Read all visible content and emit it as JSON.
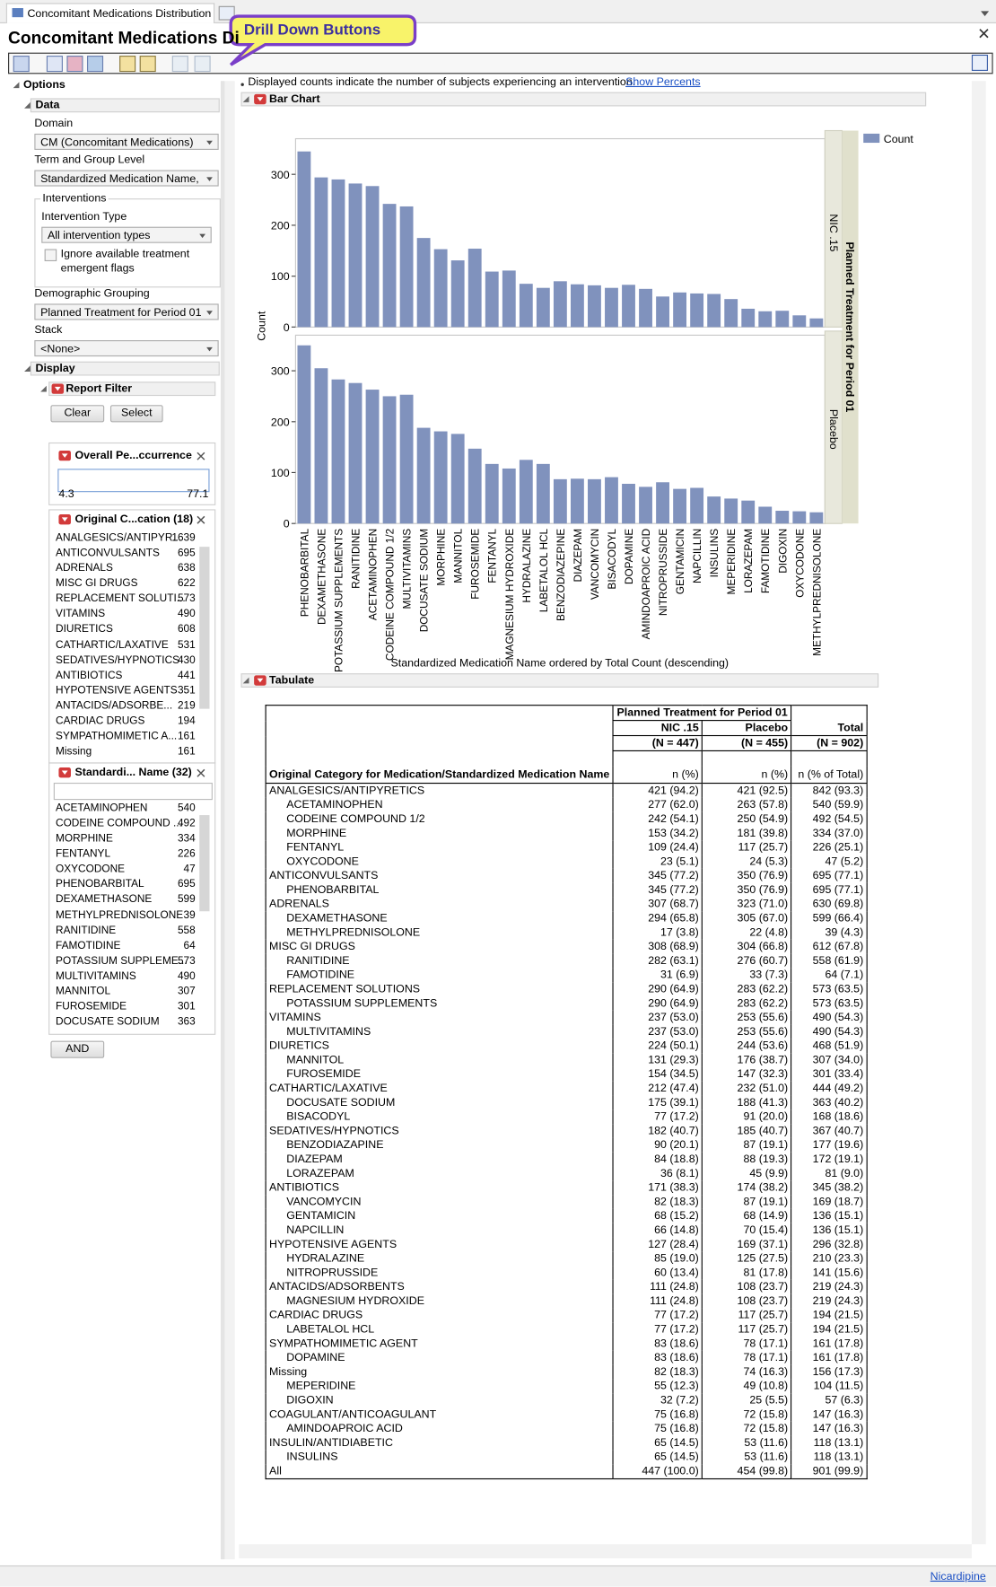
{
  "tab": {
    "title": "Concomitant Medications Distribution"
  },
  "header": {
    "title": "Concomitant Medications Di",
    "callout": "Drill Down Buttons"
  },
  "options": {
    "title": "Options",
    "data_section": "Data",
    "domain_label": "Domain",
    "domain_value": "CM (Concomitant Medications)",
    "term_label": "Term and Group Level",
    "term_value": "Standardized Medication Name, c",
    "interventions_label": "Interventions",
    "intervention_type_label": "Intervention Type",
    "intervention_type_value": "All intervention types",
    "ignore_checkbox_line1": "Ignore available treatment",
    "ignore_checkbox_line2": "emergent flags",
    "demographic_label": "Demographic Grouping",
    "demographic_value": "Planned Treatment for Period 01",
    "stack_label": "Stack",
    "stack_value": "<None>",
    "display_section": "Display",
    "report_filter": "Report Filter",
    "clear": "Clear",
    "select": "Select",
    "and_button": "AND"
  },
  "occurrence_filter": {
    "title": "Overall Pe...ccurrence",
    "range": [
      4.3,
      77.1
    ]
  },
  "category_filter": {
    "title": "Original C...cation (18)",
    "items": [
      {
        "name": "ANALGESICS/ANTIPYR...",
        "count": 1639
      },
      {
        "name": "ANTICONVULSANTS",
        "count": 695
      },
      {
        "name": "ADRENALS",
        "count": 638
      },
      {
        "name": "MISC GI DRUGS",
        "count": 622
      },
      {
        "name": "REPLACEMENT SOLUTI...",
        "count": 573
      },
      {
        "name": "VITAMINS",
        "count": 490
      },
      {
        "name": "DIURETICS",
        "count": 608
      },
      {
        "name": "CATHARTIC/LAXATIVE",
        "count": 531
      },
      {
        "name": "SEDATIVES/HYPNOTICS",
        "count": 430
      },
      {
        "name": "ANTIBIOTICS",
        "count": 441
      },
      {
        "name": "HYPOTENSIVE AGENTS",
        "count": 351
      },
      {
        "name": "ANTACIDS/ADSORBE...",
        "count": 219
      },
      {
        "name": "CARDIAC DRUGS",
        "count": 194
      },
      {
        "name": "SYMPATHOMIMETIC A...",
        "count": 161
      },
      {
        "name": "Missing",
        "count": 161
      }
    ]
  },
  "name_filter": {
    "title": "Standardi... Name (32)",
    "items": [
      {
        "name": "ACETAMINOPHEN",
        "count": 540
      },
      {
        "name": "CODEINE COMPOUND ...",
        "count": 492
      },
      {
        "name": "MORPHINE",
        "count": 334
      },
      {
        "name": "FENTANYL",
        "count": 226
      },
      {
        "name": "OXYCODONE",
        "count": 47
      },
      {
        "name": "PHENOBARBITAL",
        "count": 695
      },
      {
        "name": "DEXAMETHASONE",
        "count": 599
      },
      {
        "name": "METHYLPREDNISOLONE",
        "count": 39
      },
      {
        "name": "RANITIDINE",
        "count": 558
      },
      {
        "name": "FAMOTIDINE",
        "count": 64
      },
      {
        "name": "POTASSIUM SUPPLEME...",
        "count": 573
      },
      {
        "name": "MULTIVITAMINS",
        "count": 490
      },
      {
        "name": "MANNITOL",
        "count": 307
      },
      {
        "name": "FUROSEMIDE",
        "count": 301
      },
      {
        "name": "DOCUSATE SODIUM",
        "count": 363
      }
    ]
  },
  "note": {
    "text": "Displayed counts indicate the number of subjects experiencing an intervention.",
    "link": "Show Percents"
  },
  "chart_data": {
    "type": "bar",
    "section_title": "Bar Chart",
    "x_label": "Standardized Medication Name ordered by Total Count (descending)",
    "y_label": "Count",
    "group_label": "Planned Treatment for Period 01",
    "legend_title": "Count",
    "legend": "right",
    "color": "#8092bd",
    "categories": [
      "PHENOBARBITAL",
      "DEXAMETHASONE",
      "POTASSIUM SUPPLEMENTS",
      "RANITIDINE",
      "ACETAMINOPHEN",
      "CODEINE COMPOUND 1/2",
      "MULTIVITAMINS",
      "DOCUSATE SODIUM",
      "MORPHINE",
      "MANNITOL",
      "FUROSEMIDE",
      "FENTANYL",
      "MAGNESIUM HYDROXIDE",
      "HYDRALAZINE",
      "LABETALOL HCL",
      "BENZODIAZEPINE",
      "DIAZEPAM",
      "VANCOMYCIN",
      "BISACODYL",
      "DOPAMINE",
      "AMINDOAPROIC ACID",
      "NITROPRUSSIDE",
      "GENTAMICIN",
      "NAPCILLIN",
      "INSULINS",
      "MEPERIDINE",
      "LORAZEPAM",
      "FAMOTIDINE",
      "DIGOXIN",
      "OXYCODONE",
      "METHYLPREDNISOLONE"
    ],
    "panels": [
      {
        "name": "NIC .15",
        "values": [
          345,
          294,
          290,
          282,
          277,
          242,
          237,
          175,
          153,
          131,
          154,
          109,
          111,
          85,
          77,
          90,
          84,
          82,
          77,
          83,
          75,
          60,
          68,
          66,
          65,
          55,
          36,
          31,
          32,
          23,
          17
        ]
      },
      {
        "name": "Placebo",
        "values": [
          350,
          305,
          283,
          276,
          263,
          250,
          253,
          188,
          181,
          176,
          147,
          117,
          108,
          125,
          117,
          87,
          88,
          87,
          91,
          78,
          72,
          81,
          68,
          70,
          53,
          49,
          45,
          33,
          25,
          24,
          22
        ]
      }
    ],
    "ylim": [
      0,
      370
    ],
    "yticks": [
      0,
      100,
      200,
      300
    ]
  },
  "tabulate": {
    "title": "Tabulate",
    "group_header": "Planned Treatment for Period 01",
    "columns": [
      "NIC .15",
      "Placebo",
      "Total"
    ],
    "n_labels": [
      "(N = 447)",
      "(N = 455)",
      "(N = 902)"
    ],
    "row_header": "Original Category for Medication/Standardized Medication Name",
    "stat_labels": [
      "n (%)",
      "n (%)",
      "n (% of Total)"
    ],
    "groups": [
      {
        "name": "ANALGESICS/ANTIPYRETICS",
        "cells": [
          "421 (94.2)",
          "421 (92.5)",
          "842 (93.3)"
        ],
        "items": [
          {
            "name": "ACETAMINOPHEN",
            "cells": [
              "277 (62.0)",
              "263 (57.8)",
              "540 (59.9)"
            ]
          },
          {
            "name": "CODEINE COMPOUND 1/2",
            "cells": [
              "242 (54.1)",
              "250 (54.9)",
              "492 (54.5)"
            ]
          },
          {
            "name": "MORPHINE",
            "cells": [
              "153 (34.2)",
              "181 (39.8)",
              "334 (37.0)"
            ]
          },
          {
            "name": "FENTANYL",
            "cells": [
              "109 (24.4)",
              "117 (25.7)",
              "226 (25.1)"
            ]
          },
          {
            "name": "OXYCODONE",
            "cells": [
              "23 (5.1)",
              "24 (5.3)",
              "47 (5.2)"
            ]
          }
        ]
      },
      {
        "name": "ANTICONVULSANTS",
        "cells": [
          "345 (77.2)",
          "350 (76.9)",
          "695 (77.1)"
        ],
        "items": [
          {
            "name": "PHENOBARBITAL",
            "cells": [
              "345 (77.2)",
              "350 (76.9)",
              "695 (77.1)"
            ]
          }
        ]
      },
      {
        "name": "ADRENALS",
        "cells": [
          "307 (68.7)",
          "323 (71.0)",
          "630 (69.8)"
        ],
        "items": [
          {
            "name": "DEXAMETHASONE",
            "cells": [
              "294 (65.8)",
              "305 (67.0)",
              "599 (66.4)"
            ]
          },
          {
            "name": "METHYLPREDNISOLONE",
            "cells": [
              "17 (3.8)",
              "22 (4.8)",
              "39 (4.3)"
            ]
          }
        ]
      },
      {
        "name": "MISC GI DRUGS",
        "cells": [
          "308 (68.9)",
          "304 (66.8)",
          "612 (67.8)"
        ],
        "items": [
          {
            "name": "RANITIDINE",
            "cells": [
              "282 (63.1)",
              "276 (60.7)",
              "558 (61.9)"
            ]
          },
          {
            "name": "FAMOTIDINE",
            "cells": [
              "31 (6.9)",
              "33 (7.3)",
              "64 (7.1)"
            ]
          }
        ]
      },
      {
        "name": "REPLACEMENT SOLUTIONS",
        "cells": [
          "290 (64.9)",
          "283 (62.2)",
          "573 (63.5)"
        ],
        "items": [
          {
            "name": "POTASSIUM SUPPLEMENTS",
            "cells": [
              "290 (64.9)",
              "283 (62.2)",
              "573 (63.5)"
            ]
          }
        ]
      },
      {
        "name": "VITAMINS",
        "cells": [
          "237 (53.0)",
          "253 (55.6)",
          "490 (54.3)"
        ],
        "items": [
          {
            "name": "MULTIVITAMINS",
            "cells": [
              "237 (53.0)",
              "253 (55.6)",
              "490 (54.3)"
            ]
          }
        ]
      },
      {
        "name": "DIURETICS",
        "cells": [
          "224 (50.1)",
          "244 (53.6)",
          "468 (51.9)"
        ],
        "items": [
          {
            "name": "MANNITOL",
            "cells": [
              "131 (29.3)",
              "176 (38.7)",
              "307 (34.0)"
            ]
          },
          {
            "name": "FUROSEMIDE",
            "cells": [
              "154 (34.5)",
              "147 (32.3)",
              "301 (33.4)"
            ]
          }
        ]
      },
      {
        "name": "CATHARTIC/LAXATIVE",
        "cells": [
          "212 (47.4)",
          "232 (51.0)",
          "444 (49.2)"
        ],
        "items": [
          {
            "name": "DOCUSATE SODIUM",
            "cells": [
              "175 (39.1)",
              "188 (41.3)",
              "363 (40.2)"
            ]
          },
          {
            "name": "BISACODYL",
            "cells": [
              "77 (17.2)",
              "91 (20.0)",
              "168 (18.6)"
            ]
          }
        ]
      },
      {
        "name": "SEDATIVES/HYPNOTICS",
        "cells": [
          "182 (40.7)",
          "185 (40.7)",
          "367 (40.7)"
        ],
        "items": [
          {
            "name": "BENZODIAZAPINE",
            "cells": [
              "90 (20.1)",
              "87 (19.1)",
              "177 (19.6)"
            ]
          },
          {
            "name": "DIAZEPAM",
            "cells": [
              "84 (18.8)",
              "88 (19.3)",
              "172 (19.1)"
            ]
          },
          {
            "name": "LORAZEPAM",
            "cells": [
              "36 (8.1)",
              "45 (9.9)",
              "81 (9.0)"
            ]
          }
        ]
      },
      {
        "name": "ANTIBIOTICS",
        "cells": [
          "171 (38.3)",
          "174 (38.2)",
          "345 (38.2)"
        ],
        "items": [
          {
            "name": "VANCOMYCIN",
            "cells": [
              "82 (18.3)",
              "87 (19.1)",
              "169 (18.7)"
            ]
          },
          {
            "name": "GENTAMICIN",
            "cells": [
              "68 (15.2)",
              "68 (14.9)",
              "136 (15.1)"
            ]
          },
          {
            "name": "NAPCILLIN",
            "cells": [
              "66 (14.8)",
              "70 (15.4)",
              "136 (15.1)"
            ]
          }
        ]
      },
      {
        "name": "HYPOTENSIVE AGENTS",
        "cells": [
          "127 (28.4)",
          "169 (37.1)",
          "296 (32.8)"
        ],
        "items": [
          {
            "name": "HYDRALAZINE",
            "cells": [
              "85 (19.0)",
              "125 (27.5)",
              "210 (23.3)"
            ]
          },
          {
            "name": "NITROPRUSSIDE",
            "cells": [
              "60 (13.4)",
              "81 (17.8)",
              "141 (15.6)"
            ]
          }
        ]
      },
      {
        "name": "ANTACIDS/ADSORBENTS",
        "cells": [
          "111 (24.8)",
          "108 (23.7)",
          "219 (24.3)"
        ],
        "items": [
          {
            "name": "MAGNESIUM HYDROXIDE",
            "cells": [
              "111 (24.8)",
              "108 (23.7)",
              "219 (24.3)"
            ]
          }
        ]
      },
      {
        "name": "CARDIAC DRUGS",
        "cells": [
          "77 (17.2)",
          "117 (25.7)",
          "194 (21.5)"
        ],
        "items": [
          {
            "name": "LABETALOL HCL",
            "cells": [
              "77 (17.2)",
              "117 (25.7)",
              "194 (21.5)"
            ]
          }
        ]
      },
      {
        "name": "SYMPATHOMIMETIC AGENT",
        "cells": [
          "83 (18.6)",
          "78 (17.1)",
          "161 (17.8)"
        ],
        "items": [
          {
            "name": "DOPAMINE",
            "cells": [
              "83 (18.6)",
              "78 (17.1)",
              "161 (17.8)"
            ]
          }
        ]
      },
      {
        "name": "Missing",
        "cells": [
          "82 (18.3)",
          "74 (16.3)",
          "156 (17.3)"
        ],
        "items": [
          {
            "name": "MEPERIDINE",
            "cells": [
              "55 (12.3)",
              "49 (10.8)",
              "104 (11.5)"
            ]
          },
          {
            "name": "DIGOXIN",
            "cells": [
              "32 (7.2)",
              "25 (5.5)",
              "57 (6.3)"
            ]
          }
        ]
      },
      {
        "name": "COAGULANT/ANTICOAGULANT",
        "cells": [
          "75 (16.8)",
          "72 (15.8)",
          "147 (16.3)"
        ],
        "items": [
          {
            "name": "AMINDOAPROIC ACID",
            "cells": [
              "75 (16.8)",
              "72 (15.8)",
              "147 (16.3)"
            ]
          }
        ]
      },
      {
        "name": "INSULIN/ANTIDIABETIC",
        "cells": [
          "65 (14.5)",
          "53 (11.6)",
          "118 (13.1)"
        ],
        "items": [
          {
            "name": "INSULINS",
            "cells": [
              "65 (14.5)",
              "53 (11.6)",
              "118 (13.1)"
            ]
          }
        ]
      }
    ],
    "total": {
      "name": "All",
      "cells": [
        "447 (100.0)",
        "454 (99.8)",
        "901 (99.9)"
      ]
    }
  },
  "footer": {
    "link": "Nicardipine"
  }
}
